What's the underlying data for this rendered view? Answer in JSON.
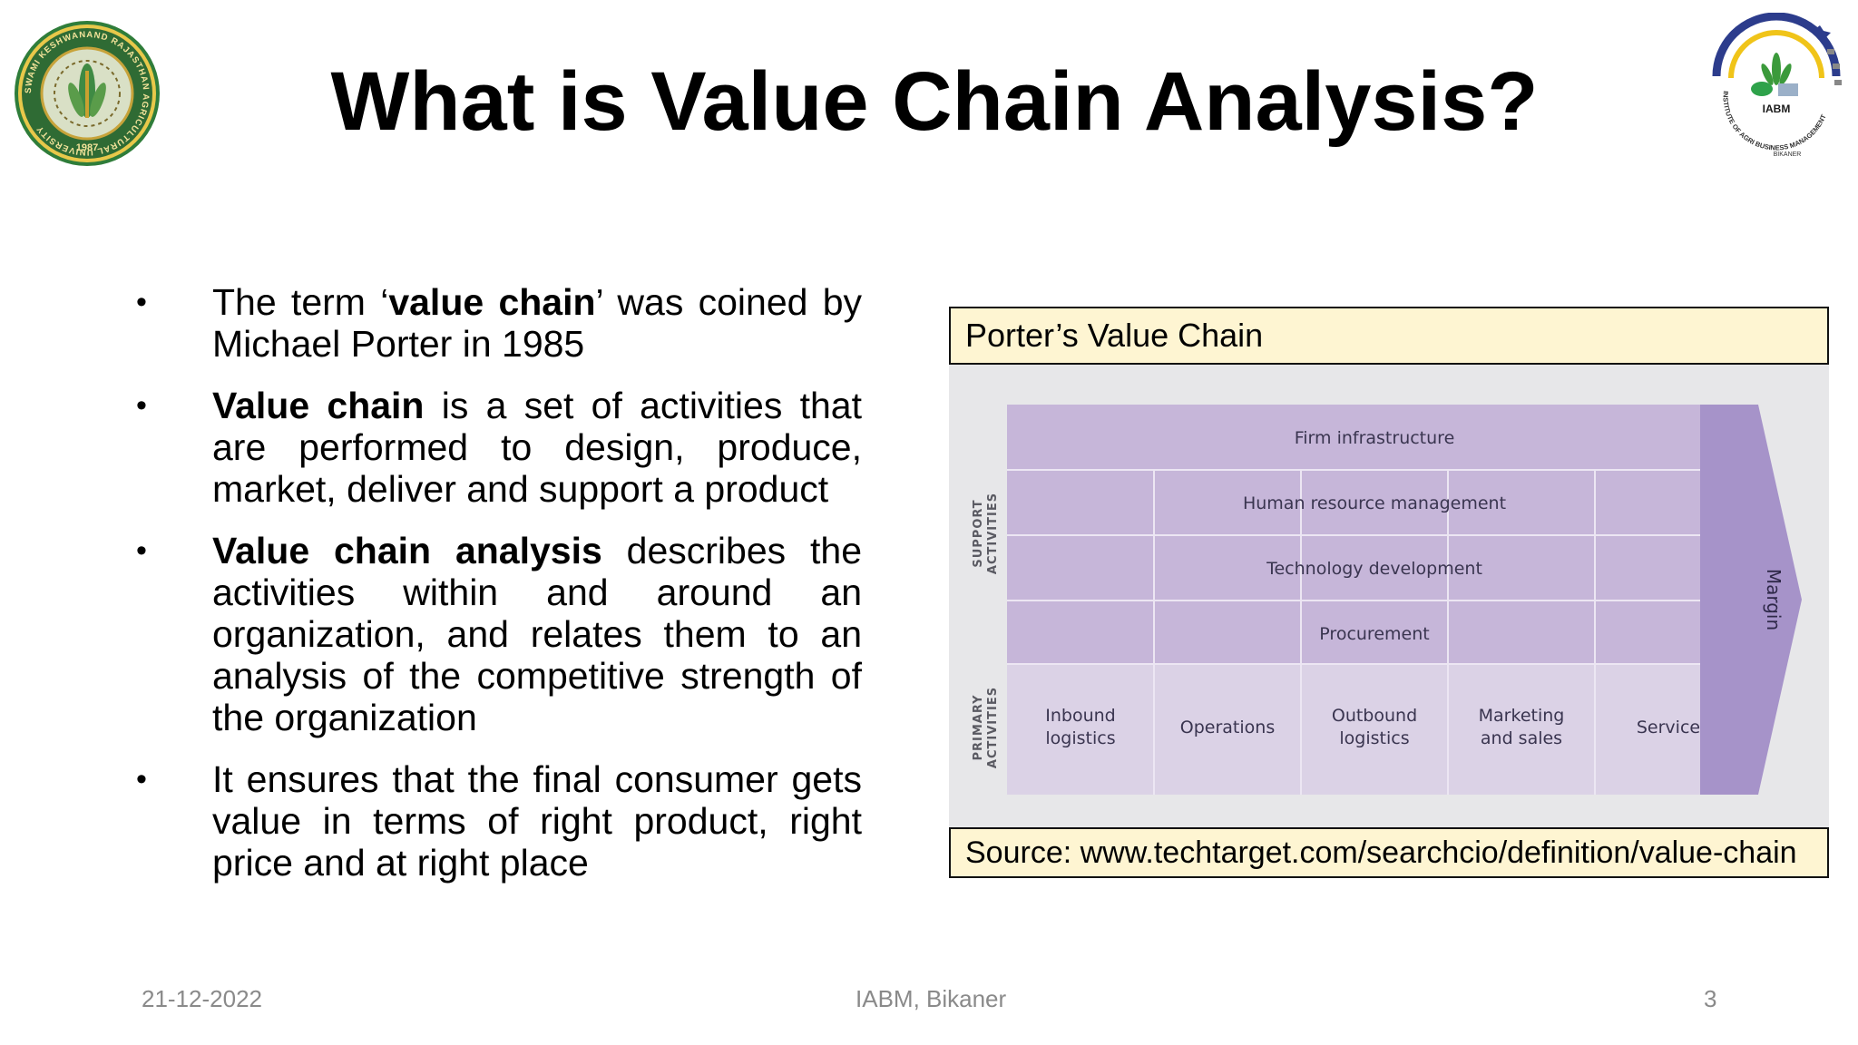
{
  "slide": {
    "title": "What is Value Chain Analysis?",
    "bullets": [
      {
        "pre": "The term ‘",
        "bold": "value chain",
        "post": "’ was coined by Michael Porter in 1985"
      },
      {
        "pre": "",
        "bold": "Value chain",
        "post": " is a set of activities that are performed to design, produce, market, deliver and support a product"
      },
      {
        "pre": "",
        "bold": "Value chain analysis",
        "post": " describes the activities within and around an organization, and relates them to an analysis of the competitive strength of the organization"
      },
      {
        "pre": "",
        "bold": "",
        "post": "It ensures that the final consumer gets value in terms of right product, right price and at right place"
      }
    ],
    "bullet_glyph": "•"
  },
  "figure": {
    "caption_top": "Porter’s Value Chain",
    "caption_bottom": "Source: www.techtarget.com/searchcio/definition/value-chain",
    "support_label_1": "SUPPORT",
    "support_label_2": "ACTIVITIES",
    "primary_label_1": "PRIMARY",
    "primary_label_2": "ACTIVITIES",
    "support_activities": [
      "Firm infrastructure",
      "Human resource management",
      "Technology development",
      "Procurement"
    ],
    "primary_activities": [
      [
        "Inbound",
        "logistics"
      ],
      [
        "Operations"
      ],
      [
        "Outbound",
        "logistics"
      ],
      [
        "Marketing",
        "and sales"
      ],
      [
        "Service"
      ]
    ],
    "margin_label": "Margin",
    "colors": {
      "support_fill": "#c6b6d9",
      "primary_fill": "#dbd2e6",
      "margin_fill": "#a693c9",
      "background": "#e7e7e9",
      "text": "#3a3550"
    }
  },
  "logos": {
    "left": {
      "icon": "university-seal-icon",
      "text": "SWAMI KESHWANAND RAJASTHAN AGRICULTURAL UNIVERSITY",
      "year": "1987"
    },
    "right": {
      "icon": "iabm-logo-icon",
      "text": "IABM",
      "subtext": "INSTITUTE OF AGRI BUSINESS MANAGEMENT",
      "city": "BIKANER"
    }
  },
  "footer": {
    "date": "21-12-2022",
    "center": "IABM, Bikaner",
    "page": "3"
  }
}
